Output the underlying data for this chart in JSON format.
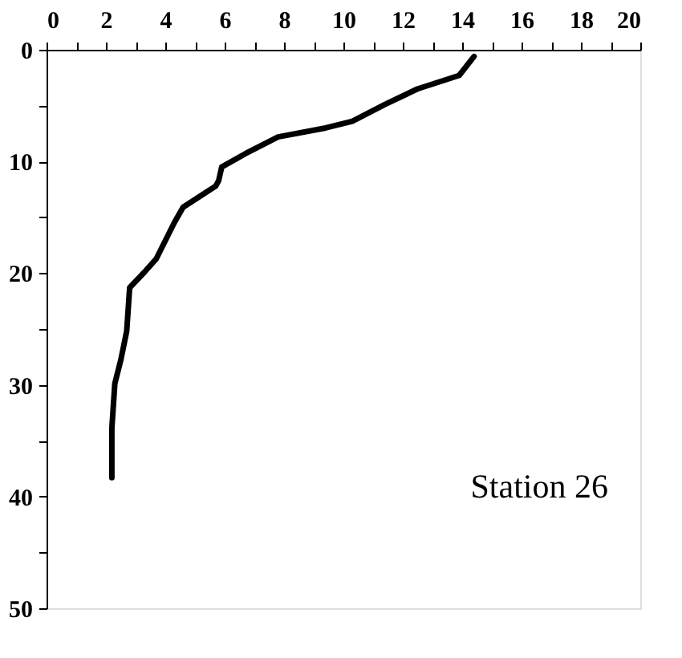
{
  "chart_data": {
    "type": "line",
    "series": [
      {
        "color": "#000000",
        "x": [
          14.4,
          13.9,
          12.5,
          11.4,
          10.3,
          9.4,
          7.8,
          6.7,
          5.9,
          5.8,
          5.7,
          4.6,
          4.3,
          3.7,
          3.3,
          2.8,
          2.7,
          2.5,
          2.3,
          2.2,
          2.2
        ],
        "values": [
          0.6,
          2.3,
          3.5,
          4.9,
          6.4,
          7.0,
          7.8,
          9.3,
          10.5,
          11.7,
          12.2,
          14.1,
          15.5,
          18.7,
          19.9,
          21.3,
          25.2,
          27.8,
          29.9,
          33.9,
          38.3
        ]
      }
    ],
    "xlim": [
      0,
      20
    ],
    "xticks": [
      0,
      {
        "value": 1,
        "label": null
      },
      2,
      {
        "value": 3,
        "label": null
      },
      4,
      {
        "value": 5,
        "label": null
      },
      6,
      {
        "value": 7,
        "label": null
      },
      8,
      {
        "value": 9,
        "label": null
      },
      10,
      {
        "value": 11,
        "label": null
      },
      12,
      {
        "value": 13,
        "label": null
      },
      14,
      {
        "value": 15,
        "label": null
      },
      16,
      {
        "value": 17,
        "label": null
      },
      18,
      {
        "value": 19,
        "label": null
      },
      20
    ],
    "ylim": [
      50,
      0
    ],
    "yticks": [
      0,
      {
        "value": 5,
        "label": null
      },
      10,
      {
        "value": 15,
        "label": null
      },
      20,
      {
        "value": 25,
        "label": null
      },
      30,
      {
        "value": 35,
        "label": null
      },
      40,
      {
        "value": 45,
        "label": null
      },
      50
    ],
    "annotations": [
      "Station 26"
    ],
    "grid": false,
    "marker": "none",
    "line_style": "solid"
  }
}
